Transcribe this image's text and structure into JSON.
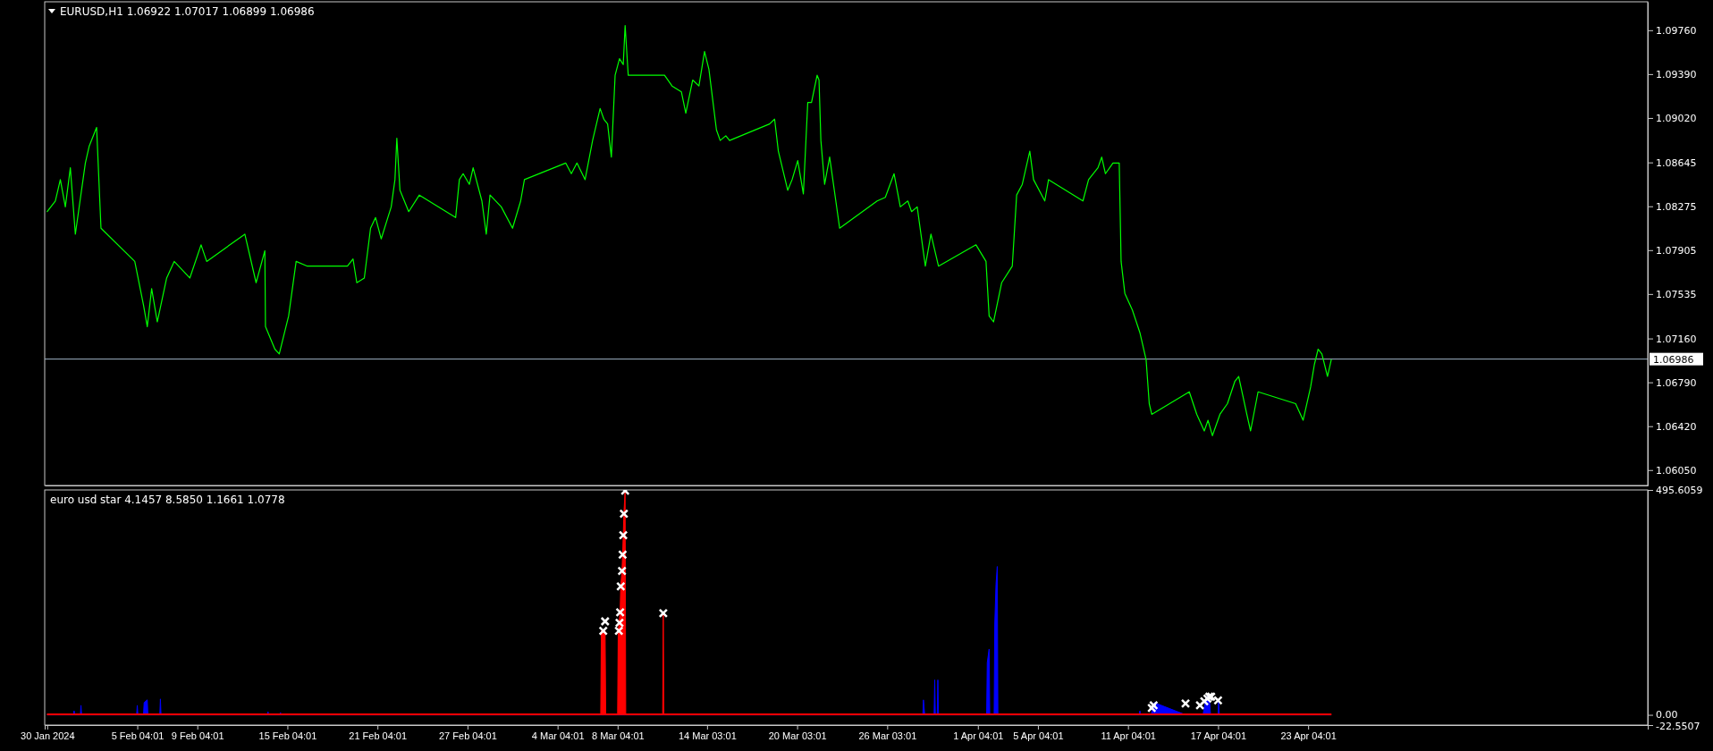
{
  "chart_data": [
    {
      "type": "line",
      "title": "EURUSD,H1 1.06922 1.07017 1.06899 1.06986",
      "series": [
        {
          "color": "#00ff00",
          "x": [
            "2024-01-30T04:00",
            "2024-01-30T17:00",
            "2024-01-31T01:00",
            "2024-01-31T09:00",
            "2024-01-31T17:00",
            "2024-02-01T01:00",
            "2024-02-01T17:00",
            "2024-02-01T23:00",
            "2024-02-02T11:00",
            "2024-02-02T18:00",
            "2024-02-05T00:00",
            "2024-02-05T14:00",
            "2024-02-05T20:00",
            "2024-02-06T03:00",
            "2024-02-06T12:00",
            "2024-02-07T03:00",
            "2024-02-07T15:00",
            "2024-02-08T16:00",
            "2024-02-09T10:00",
            "2024-02-09T19:00",
            "2024-02-12T08:00",
            "2024-02-13T02:00",
            "2024-02-13T16:00",
            "2024-02-13T17:00",
            "2024-02-14T08:00",
            "2024-02-14T15:00",
            "2024-02-15T06:00",
            "2024-02-15T18:00",
            "2024-02-16T12:00",
            "2024-02-19T04:00",
            "2024-02-19T13:00",
            "2024-02-19T19:00",
            "2024-02-20T07:00",
            "2024-02-20T17:00",
            "2024-02-21T01:00",
            "2024-02-21T10:00",
            "2024-02-22T02:00",
            "2024-02-22T08:00",
            "2024-02-22T11:00",
            "2024-02-22T16:00",
            "2024-02-23T06:00",
            "2024-02-23T23:00",
            "2024-02-26T09:00",
            "2024-02-26T15:00",
            "2024-02-26T21:00",
            "2024-02-27T07:00",
            "2024-02-27T13:00",
            "2024-02-28T03:00",
            "2024-02-28T10:00",
            "2024-02-28T16:00",
            "2024-02-29T10:00",
            "2024-03-01T04:00",
            "2024-03-01T17:00",
            "2024-03-01T23:00",
            "2024-03-04T17:00",
            "2024-03-05T02:00",
            "2024-03-05T11:00",
            "2024-03-06T00:00",
            "2024-03-06T12:00",
            "2024-03-07T00:00",
            "2024-03-07T06:00",
            "2024-03-07T12:00",
            "2024-03-07T18:00",
            "2024-03-08T00:00",
            "2024-03-08T07:00",
            "2024-03-08T13:00",
            "2024-03-08T16:00",
            "2024-03-08T21:00",
            "2024-03-11T07:00",
            "2024-03-11T19:00",
            "2024-03-12T10:00",
            "2024-03-12T17:00",
            "2024-03-13T04:00",
            "2024-03-13T14:00",
            "2024-03-13T23:00",
            "2024-03-14T06:00",
            "2024-03-14T18:00",
            "2024-03-15T00:00",
            "2024-03-15T09:00",
            "2024-03-15T15:00",
            "2024-03-18T07:00",
            "2024-03-18T15:00",
            "2024-03-18T21:00",
            "2024-03-19T12:00",
            "2024-03-19T19:00",
            "2024-03-20T04:00",
            "2024-03-20T13:00",
            "2024-03-20T20:00",
            "2024-03-21T02:00",
            "2024-03-21T11:00",
            "2024-03-21T14:00",
            "2024-03-21T17:00",
            "2024-03-21T23:00",
            "2024-03-22T07:00",
            "2024-03-22T23:00",
            "2024-03-25T11:00",
            "2024-03-26T00:00",
            "2024-03-26T14:00",
            "2024-03-27T00:00",
            "2024-03-27T12:00",
            "2024-03-27T18:00",
            "2024-03-28T03:00",
            "2024-03-28T16:00",
            "2024-03-29T01:00",
            "2024-03-29T13:00",
            "2024-04-01T01:00",
            "2024-04-01T17:00",
            "2024-04-01T22:00",
            "2024-04-02T05:00",
            "2024-04-02T18:00",
            "2024-04-03T11:00",
            "2024-04-03T18:00",
            "2024-04-04T03:00",
            "2024-04-04T15:00",
            "2024-04-04T21:00",
            "2024-04-05T15:00",
            "2024-04-05T21:00",
            "2024-04-08T04:00",
            "2024-04-08T13:00",
            "2024-04-09T04:00",
            "2024-04-09T10:00",
            "2024-04-09T16:00",
            "2024-04-10T04:00",
            "2024-04-10T14:00",
            "2024-04-10T17:00",
            "2024-04-10T23:00",
            "2024-04-11T11:00",
            "2024-04-11T23:00",
            "2024-04-12T09:00",
            "2024-04-12T14:00",
            "2024-04-12T18:00",
            "2024-04-15T06:00",
            "2024-04-15T18:00",
            "2024-04-16T06:00",
            "2024-04-16T12:00",
            "2024-04-16T19:00",
            "2024-04-17T07:00",
            "2024-04-17T19:00",
            "2024-04-18T07:00",
            "2024-04-18T13:00",
            "2024-04-19T02:00",
            "2024-04-19T08:00",
            "2024-04-19T20:00",
            "2024-04-22T08:00",
            "2024-04-22T20:00",
            "2024-04-23T08:00",
            "2024-04-23T14:00",
            "2024-04-23T20:00",
            "2024-04-24T02:00",
            "2024-04-24T11:00",
            "2024-04-24T17:00"
          ],
          "values": [
            1.0823,
            1.0832,
            1.085,
            1.0827,
            1.086,
            1.0804,
            1.0864,
            1.0878,
            1.0894,
            1.0809,
            1.0781,
            1.0744,
            1.0726,
            1.0758,
            1.073,
            1.0767,
            1.0781,
            1.0767,
            1.0795,
            1.0781,
            1.0804,
            1.0763,
            1.079,
            1.0726,
            1.0707,
            1.0703,
            1.0735,
            1.0781,
            1.0777,
            1.0777,
            1.0783,
            1.0763,
            1.0767,
            1.0809,
            1.0818,
            1.08,
            1.0827,
            1.085,
            1.0885,
            1.0841,
            1.0823,
            1.0837,
            1.0818,
            1.085,
            1.0855,
            1.0846,
            1.086,
            1.0832,
            1.0804,
            1.0837,
            1.0827,
            1.0809,
            1.0832,
            1.085,
            1.0864,
            1.0855,
            1.0864,
            1.085,
            1.0883,
            1.091,
            1.0901,
            1.0897,
            1.0869,
            1.0938,
            1.0952,
            1.0947,
            1.098,
            1.0938,
            1.0938,
            1.0929,
            1.0924,
            1.0906,
            1.0934,
            1.0929,
            1.0958,
            1.0943,
            1.0892,
            1.0883,
            1.0887,
            1.0883,
            1.0897,
            1.0901,
            1.0874,
            1.0841,
            1.085,
            1.0866,
            1.0838,
            1.0915,
            1.0915,
            1.0938,
            1.0934,
            1.0883,
            1.0846,
            1.0869,
            1.0809,
            1.0832,
            1.0835,
            1.0855,
            1.0827,
            1.0832,
            1.0823,
            1.0827,
            1.0777,
            1.0804,
            1.0777,
            1.0795,
            1.0781,
            1.0735,
            1.073,
            1.0763,
            1.0777,
            1.0837,
            1.0846,
            1.0874,
            1.085,
            1.0832,
            1.085,
            1.0832,
            1.085,
            1.086,
            1.0869,
            1.0855,
            1.0864,
            1.0864,
            1.0781,
            1.0754,
            1.074,
            1.0721,
            1.0698,
            1.0661,
            1.0652,
            1.0671,
            1.0652,
            1.0638,
            1.0647,
            1.0634,
            1.0652,
            1.0661,
            1.068,
            1.0684,
            1.0652,
            1.0638,
            1.0671,
            1.0661,
            1.0647,
            1.0675,
            1.0694,
            1.0707,
            1.0703,
            1.0684,
            1.0698
          ]
        }
      ],
      "xlim": [
        "2024-01-30T00:00",
        "2024-05-15T19:00"
      ],
      "ylim": [
        1.0592,
        1.1
      ],
      "yticks": [
        {
          "value": 1.0605,
          "label": "1.06050"
        },
        {
          "value": 1.0642,
          "label": "1.06420"
        },
        {
          "value": 1.0679,
          "label": "1.06790"
        },
        {
          "value": 1.0716,
          "label": "1.07160"
        },
        {
          "value": 1.07535,
          "label": "1.07535"
        },
        {
          "value": 1.07905,
          "label": "1.07905"
        },
        {
          "value": 1.08275,
          "label": "1.08275"
        },
        {
          "value": 1.08645,
          "label": "1.08645"
        },
        {
          "value": 1.0902,
          "label": "1.09020"
        },
        {
          "value": 1.0939,
          "label": "1.09390"
        },
        {
          "value": 1.0976,
          "label": "1.09760"
        }
      ],
      "tick_labels": "y",
      "ref_lines": [
        {
          "axis": "y",
          "value": 1.06986,
          "label": "1.06986",
          "color": "#a0b4c8"
        }
      ]
    },
    {
      "type": "area",
      "title": "euro usd star 4.1457 8.5850 1.1661 1.0778",
      "series": [
        {
          "color": "#0000ff",
          "x": [
            "2024-01-30T04:00",
            "2024-01-31T22:00",
            "2024-01-31T23:00",
            "2024-02-01T00:00",
            "2024-02-01T09:00",
            "2024-02-01T10:00",
            "2024-02-01T11:00",
            "2024-02-05T03:00",
            "2024-02-05T04:00",
            "2024-02-05T05:00",
            "2024-02-05T14:00",
            "2024-02-05T15:00",
            "2024-02-05T20:00",
            "2024-02-05T21:00",
            "2024-02-06T16:00",
            "2024-02-06T17:00",
            "2024-02-06T18:00",
            "2024-02-13T20:00",
            "2024-02-13T21:00",
            "2024-02-13T22:00",
            "2024-02-14T16:00",
            "2024-02-14T17:00",
            "2024-02-14T18:00",
            "2024-03-28T12:00",
            "2024-03-28T13:00",
            "2024-03-28T15:00",
            "2024-03-29T06:00",
            "2024-03-29T07:00",
            "2024-03-29T08:00",
            "2024-03-29T11:00",
            "2024-03-29T12:00",
            "2024-03-29T13:00",
            "2024-04-01T18:00",
            "2024-04-01T19:00",
            "2024-04-01T22:00",
            "2024-04-01T23:00",
            "2024-04-02T06:00",
            "2024-04-02T07:00",
            "2024-04-02T09:00",
            "2024-04-02T11:00",
            "2024-04-02T12:00",
            "2024-04-11T22:00",
            "2024-04-11T23:00",
            "2024-04-12T00:00",
            "2024-04-12T17:00",
            "2024-04-12T22:00",
            "2024-04-15T00:00",
            "2024-04-16T04:00",
            "2024-04-16T09:00",
            "2024-04-16T14:00",
            "2024-04-16T16:00",
            "2024-04-17T04:00",
            "2024-04-17T05:00",
            "2024-04-17T06:00",
            "2024-04-24T17:00"
          ],
          "values": [
            0,
            0,
            9,
            0,
            0,
            21,
            0,
            0,
            21,
            0,
            0,
            27,
            33,
            0,
            0,
            35,
            0,
            0,
            7,
            0,
            0,
            5,
            0,
            0,
            33,
            0,
            0,
            77,
            0,
            0,
            77,
            0,
            0,
            115,
            145,
            0,
            0,
            200,
            288,
            327,
            0,
            0,
            9,
            0,
            0,
            27,
            0,
            0,
            40,
            40,
            0,
            0,
            33,
            0,
            0
          ]
        },
        {
          "color": "#ff0000",
          "x": [
            "2024-01-30T04:00",
            "2024-03-07T01:00",
            "2024-03-07T02:00",
            "2024-03-07T08:00",
            "2024-03-07T09:00",
            "2024-03-08T04:00",
            "2024-03-08T05:00",
            "2024-03-08T08:00",
            "2024-03-08T09:00",
            "2024-03-08T11:00",
            "2024-03-08T12:00",
            "2024-03-08T13:00",
            "2024-03-08T14:00",
            "2024-03-08T16:00",
            "2024-03-08T17:00",
            "2024-03-11T04:00",
            "2024-03-11T05:00",
            "2024-03-11T06:00",
            "2024-04-24T17:00"
          ],
          "values": [
            2,
            2,
            185,
            185,
            2,
            2,
            185,
            226,
            283,
            317,
            353,
            396,
            443,
            494,
            2,
            2,
            224,
            2,
            2
          ]
        },
        {
          "type": "scatter",
          "marker": "cross",
          "color": "#ffffff",
          "x": [
            "2024-03-07T05:00",
            "2024-03-07T08:00",
            "2024-03-08T06:00",
            "2024-03-08T07:00",
            "2024-03-08T08:00",
            "2024-03-08T09:00",
            "2024-03-08T11:00",
            "2024-03-08T12:00",
            "2024-03-08T13:00",
            "2024-03-08T14:00",
            "2024-03-08T16:00",
            "2024-03-11T05:00",
            "2024-04-12T18:00",
            "2024-04-12T21:00",
            "2024-04-15T00:00",
            "2024-04-15T23:00",
            "2024-04-16T06:00",
            "2024-04-16T11:00",
            "2024-04-16T14:00",
            "2024-04-16T17:00",
            "2024-04-17T04:00"
          ],
          "values": [
            185,
            206,
            185,
            203,
            226,
            283,
            317,
            353,
            396,
            443,
            494,
            224,
            15,
            21,
            25,
            21,
            30,
            36,
            40,
            40,
            32
          ]
        }
      ],
      "xlim": [
        "2024-01-30T00:00",
        "2024-05-15T19:00"
      ],
      "xticks": [
        {
          "value": "2024-01-30T04:00",
          "label": "30 Jan 2024"
        },
        {
          "value": "2024-02-05T04:01",
          "label": "5 Feb 04:01"
        },
        {
          "value": "2024-02-09T04:01",
          "label": "9 Feb 04:01"
        },
        {
          "value": "2024-02-15T04:01",
          "label": "15 Feb 04:01"
        },
        {
          "value": "2024-02-21T04:01",
          "label": "21 Feb 04:01"
        },
        {
          "value": "2024-02-27T04:01",
          "label": "27 Feb 04:01"
        },
        {
          "value": "2024-03-04T04:01",
          "label": "4 Mar 04:01"
        },
        {
          "value": "2024-03-08T04:01",
          "label": "8 Mar 04:01"
        },
        {
          "value": "2024-03-14T03:01",
          "label": "14 Mar 03:01"
        },
        {
          "value": "2024-03-20T03:01",
          "label": "20 Mar 03:01"
        },
        {
          "value": "2024-03-26T03:01",
          "label": "26 Mar 03:01"
        },
        {
          "value": "2024-04-01T04:01",
          "label": "1 Apr 04:01"
        },
        {
          "value": "2024-04-05T04:01",
          "label": "5 Apr 04:01"
        },
        {
          "value": "2024-04-11T04:01",
          "label": "11 Apr 04:01"
        },
        {
          "value": "2024-04-17T04:01",
          "label": "17 Apr 04:01"
        },
        {
          "value": "2024-04-23T04:01",
          "label": "23 Apr 04:01"
        }
      ],
      "ylim": [
        -22.5507,
        495.6059
      ],
      "yticks": [
        -22.5507,
        {
          "value": 0,
          "label": "0.00"
        },
        495.6059
      ]
    }
  ]
}
